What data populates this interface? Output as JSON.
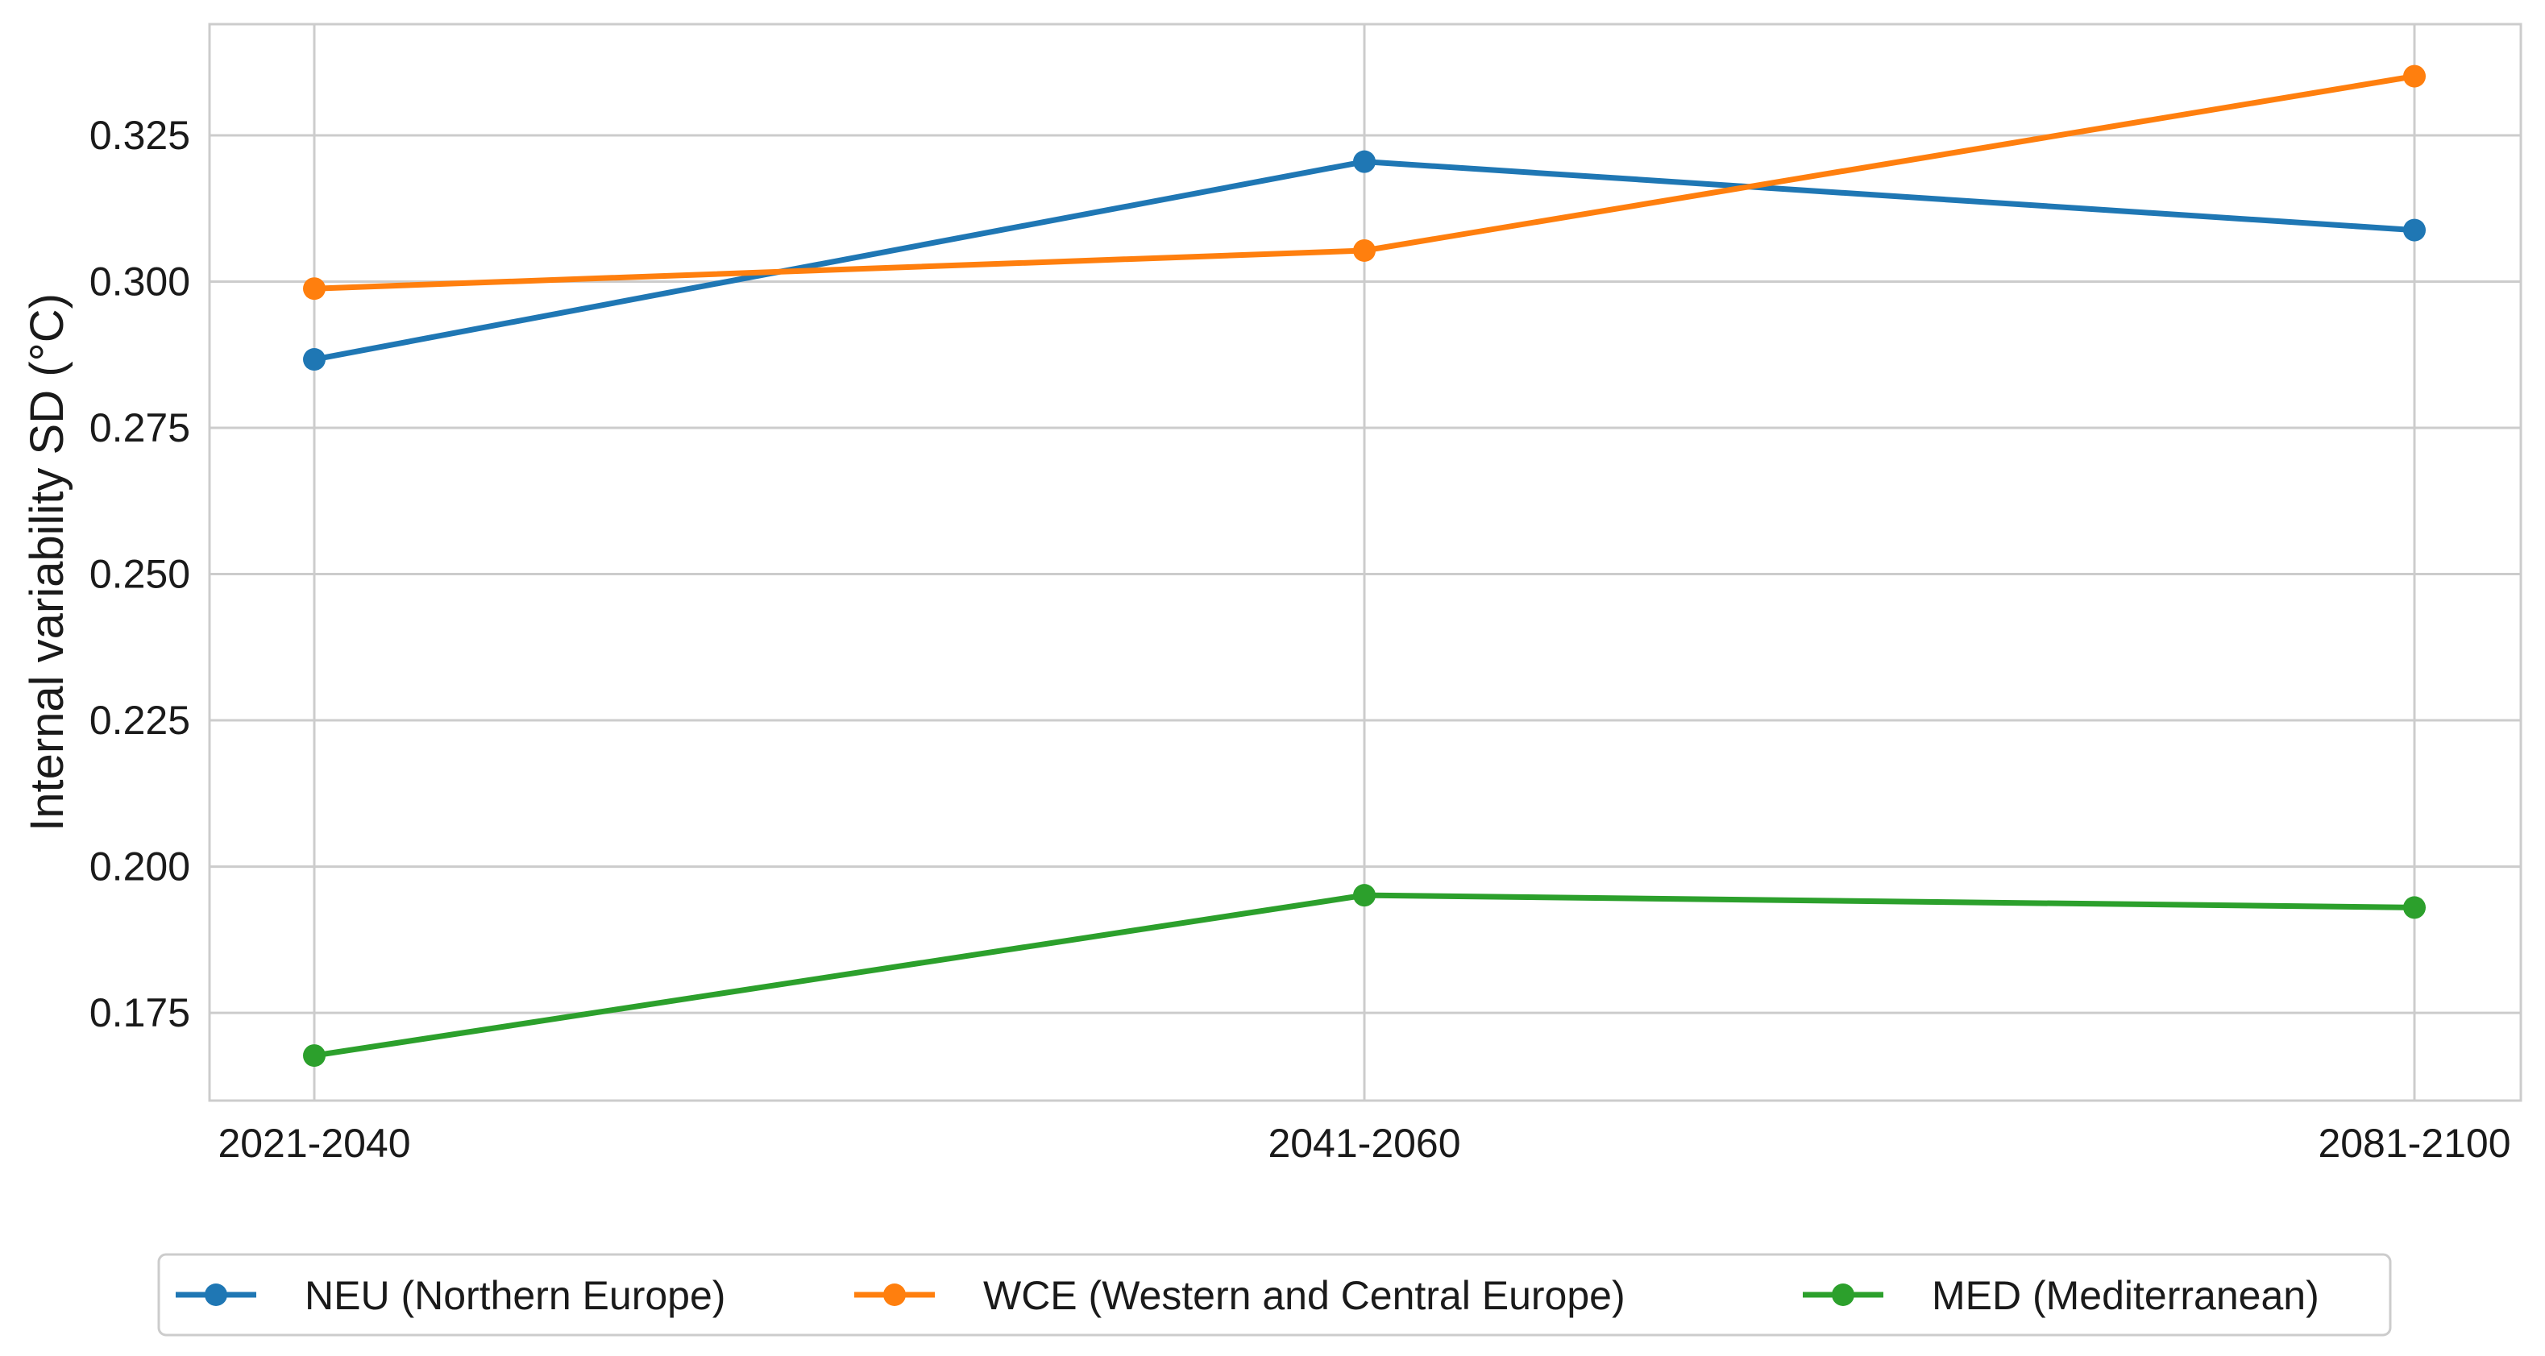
{
  "chart_data": {
    "type": "line",
    "categories": [
      "2021-2040",
      "2041-2060",
      "2081-2100"
    ],
    "series": [
      {
        "name": "NEU (Northern Europe)",
        "color": "#1f77b4",
        "values": [
          0.2867,
          0.3205,
          0.3088
        ]
      },
      {
        "name": "WCE (Western and Central Europe)",
        "color": "#ff7f0e",
        "values": [
          0.2988,
          0.3053,
          0.3351
        ]
      },
      {
        "name": "MED (Mediterranean)",
        "color": "#2ca02c",
        "values": [
          0.1677,
          0.1951,
          0.193
        ]
      }
    ],
    "ylabel": "Internal variability SD (°C)",
    "xlabel": "",
    "ylim": [
      0.16,
      0.344
    ],
    "yticks": [
      "0.175",
      "0.200",
      "0.225",
      "0.250",
      "0.275",
      "0.300",
      "0.325"
    ],
    "grid": true,
    "legend_position": "bottom-center",
    "marker": "circle"
  }
}
